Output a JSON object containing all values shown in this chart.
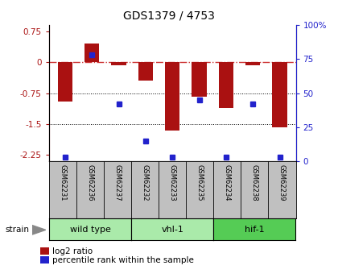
{
  "title": "GDS1379 / 4753",
  "samples": [
    "GSM62231",
    "GSM62236",
    "GSM62237",
    "GSM62232",
    "GSM62233",
    "GSM62235",
    "GSM62234",
    "GSM62238",
    "GSM62239"
  ],
  "log2_ratio": [
    -0.95,
    0.45,
    -0.08,
    -0.45,
    -1.65,
    -0.83,
    -1.1,
    -0.08,
    -1.58
  ],
  "percentile_rank": [
    3,
    78,
    42,
    15,
    3,
    45,
    3,
    42,
    3
  ],
  "groups": [
    {
      "label": "wild type",
      "indices": [
        0,
        1,
        2
      ],
      "color": "#aaeaaa"
    },
    {
      "label": "vhl-1",
      "indices": [
        3,
        4,
        5
      ],
      "color": "#aaeaaa"
    },
    {
      "label": "hif-1",
      "indices": [
        6,
        7,
        8
      ],
      "color": "#55cc55"
    }
  ],
  "ylim_left": [
    -2.4,
    0.9
  ],
  "ylim_right": [
    0,
    100
  ],
  "right_ticks": [
    0,
    25,
    50,
    75,
    100
  ],
  "right_tick_labels": [
    "0",
    "25",
    "50",
    "75",
    "100%"
  ],
  "left_ticks": [
    -2.25,
    -1.5,
    -0.75,
    0,
    0.75
  ],
  "bar_color": "#aa1111",
  "dot_color": "#2222cc",
  "hline_color": "#cc3333",
  "dotline_color": "#000000",
  "bg_color": "#ffffff",
  "sample_box_color": "#c0c0c0",
  "legend_bar_label": "log2 ratio",
  "legend_dot_label": "percentile rank within the sample",
  "group_colors": [
    "#aaeaaa",
    "#aaeaaa",
    "#55cc55"
  ]
}
